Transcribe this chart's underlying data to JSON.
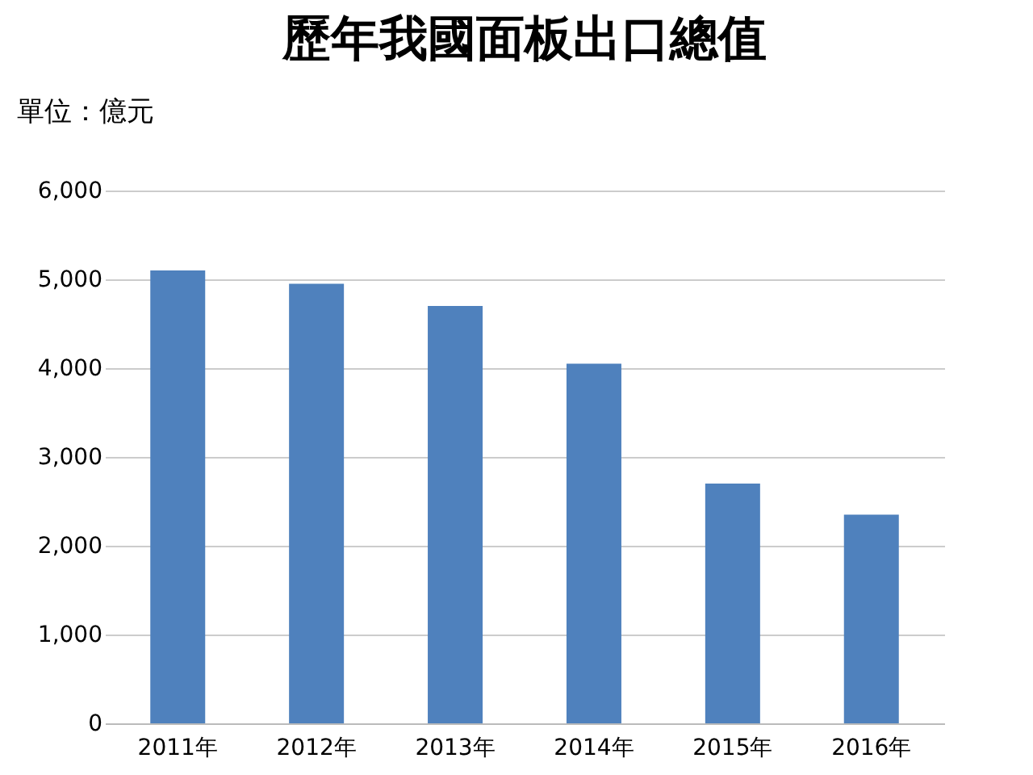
{
  "chart_data": {
    "type": "bar",
    "title": "歷年我國面板出口總值",
    "ylabel": "單位：億元",
    "categories": [
      "2011年",
      "2012年",
      "2013年",
      "2014年",
      "2015年",
      "2016年"
    ],
    "values": [
      5100,
      4950,
      4700,
      4050,
      2700,
      2350
    ],
    "color": "#4f81bd",
    "ylim": [
      0,
      6000
    ],
    "yticks": [
      0,
      {
        "value": 1000,
        "label": "1,000"
      },
      {
        "value": 2000,
        "label": "2,000"
      },
      {
        "value": 3000,
        "label": "3,000"
      },
      {
        "value": 4000,
        "label": "4,000"
      },
      {
        "value": 5000,
        "label": "5,000"
      },
      {
        "value": 6000,
        "label": "6,000"
      }
    ],
    "grid": "y"
  }
}
